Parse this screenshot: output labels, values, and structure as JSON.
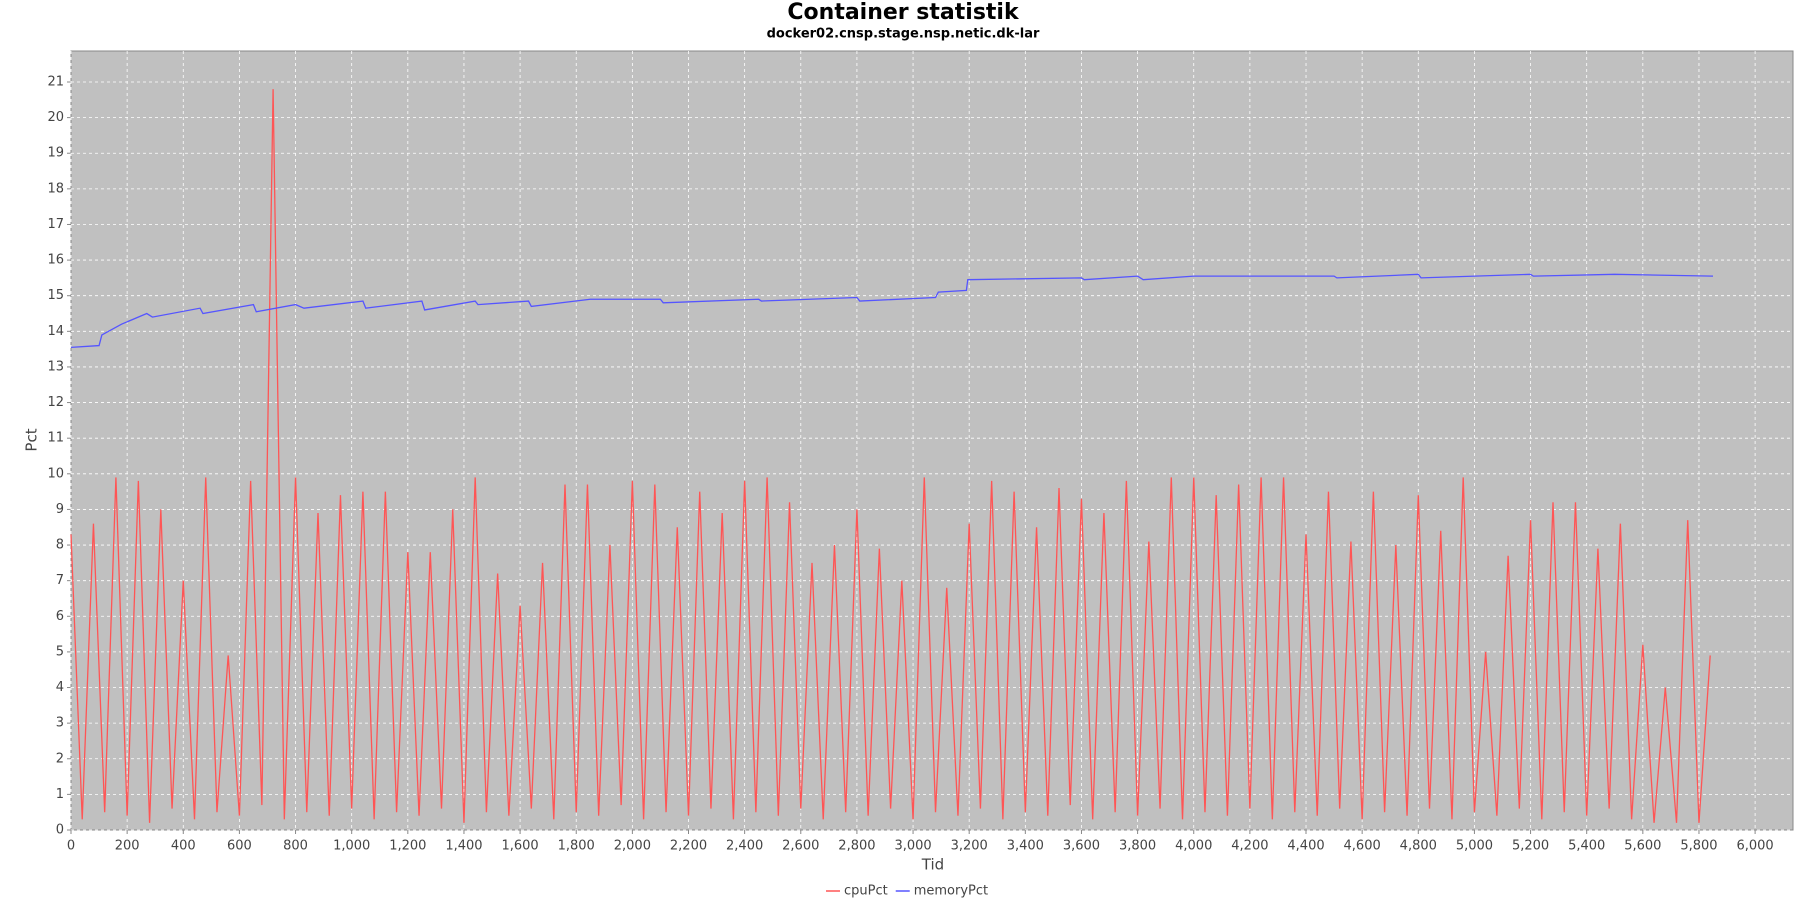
{
  "chart_data": {
    "type": "line",
    "title": "Container statistik",
    "subtitle": "docker02.cnsp.stage.nsp.netic.dk-lar",
    "x_label": "Tid",
    "y_label": "Pct",
    "grid": true,
    "legend": "bottom",
    "background": "#c0c0c0",
    "xlim": [
      0,
      6135
    ],
    "ylim": [
      0,
      21.87
    ],
    "xticks": [
      0,
      200,
      400,
      600,
      800,
      {
        "value": 1000,
        "label": "1,000"
      },
      {
        "value": 1200,
        "label": "1,200"
      },
      {
        "value": 1400,
        "label": "1,400"
      },
      {
        "value": 1600,
        "label": "1,600"
      },
      {
        "value": 1800,
        "label": "1,800"
      },
      {
        "value": 2000,
        "label": "2,000"
      },
      {
        "value": 2200,
        "label": "2,200"
      },
      {
        "value": 2400,
        "label": "2,400"
      },
      {
        "value": 2600,
        "label": "2,600"
      },
      {
        "value": 2800,
        "label": "2,800"
      },
      {
        "value": 3000,
        "label": "3,000"
      },
      {
        "value": 3200,
        "label": "3,200"
      },
      {
        "value": 3400,
        "label": "3,400"
      },
      {
        "value": 3600,
        "label": "3,600"
      },
      {
        "value": 3800,
        "label": "3,800"
      },
      {
        "value": 4000,
        "label": "4,000"
      },
      {
        "value": 4200,
        "label": "4,200"
      },
      {
        "value": 4400,
        "label": "4,400"
      },
      {
        "value": 4600,
        "label": "4,600"
      },
      {
        "value": 4800,
        "label": "4,800"
      },
      {
        "value": 5000,
        "label": "5,000"
      },
      {
        "value": 5200,
        "label": "5,200"
      },
      {
        "value": 5400,
        "label": "5,400"
      },
      {
        "value": 5600,
        "label": "5,600"
      },
      {
        "value": 5800,
        "label": "5,800"
      },
      {
        "value": 6000,
        "label": "6,000"
      }
    ],
    "yticks": [
      0,
      1,
      2,
      3,
      4,
      5,
      6,
      7,
      8,
      9,
      10,
      11,
      12,
      13,
      14,
      15,
      16,
      17,
      18,
      19,
      20,
      21
    ],
    "series": [
      {
        "name": "cpuPct",
        "color": "#ff5555",
        "x": [
          0,
          40,
          80,
          120,
          160,
          200,
          240,
          280,
          320,
          360,
          400,
          440,
          480,
          520,
          560,
          600,
          640,
          680,
          720,
          760,
          800,
          840,
          880,
          920,
          960,
          1000,
          1040,
          1080,
          1120,
          1160,
          1200,
          1240,
          1280,
          1320,
          1360,
          1400,
          1440,
          1480,
          1520,
          1560,
          1600,
          1640,
          1680,
          1720,
          1760,
          1800,
          1840,
          1880,
          1920,
          1960,
          2000,
          2040,
          2080,
          2120,
          2160,
          2200,
          2240,
          2280,
          2320,
          2360,
          2400,
          2440,
          2480,
          2520,
          2560,
          2600,
          2640,
          2680,
          2720,
          2760,
          2800,
          2840,
          2880,
          2920,
          2960,
          3000,
          3040,
          3080,
          3120,
          3160,
          3200,
          3240,
          3280,
          3320,
          3360,
          3400,
          3440,
          3480,
          3520,
          3560,
          3600,
          3640,
          3680,
          3720,
          3760,
          3800,
          3840,
          3880,
          3920,
          3960,
          4000,
          4040,
          4080,
          4120,
          4160,
          4200,
          4240,
          4280,
          4320,
          4360,
          4400,
          4440,
          4480,
          4520,
          4560,
          4600,
          4640,
          4680,
          4720,
          4760,
          4800,
          4840,
          4880,
          4920,
          4960,
          5000,
          5040,
          5080,
          5120,
          5160,
          5200,
          5240,
          5280,
          5320,
          5360,
          5400,
          5440,
          5480,
          5520,
          5560,
          5600,
          5640,
          5680,
          5720,
          5760,
          5800,
          5840
        ],
        "values": [
          8.3,
          0.3,
          8.6,
          0.5,
          9.9,
          0.4,
          9.8,
          0.2,
          9.0,
          0.6,
          7.0,
          0.3,
          9.9,
          0.5,
          4.9,
          0.4,
          9.8,
          0.7,
          20.8,
          0.3,
          9.9,
          0.5,
          8.9,
          0.4,
          9.4,
          0.6,
          9.5,
          0.3,
          9.5,
          0.5,
          7.8,
          0.4,
          7.8,
          0.6,
          9.0,
          0.2,
          9.9,
          0.5,
          7.2,
          0.4,
          6.3,
          0.6,
          7.5,
          0.3,
          9.7,
          0.5,
          9.7,
          0.4,
          8.0,
          0.7,
          9.8,
          0.3,
          9.7,
          0.5,
          8.5,
          0.4,
          9.5,
          0.6,
          8.9,
          0.3,
          9.8,
          0.5,
          9.9,
          0.4,
          9.2,
          0.6,
          7.5,
          0.3,
          8.0,
          0.5,
          9.0,
          0.4,
          7.9,
          0.6,
          7.0,
          0.3,
          9.9,
          0.5,
          6.8,
          0.4,
          8.6,
          0.6,
          9.8,
          0.3,
          9.5,
          0.5,
          8.5,
          0.4,
          9.6,
          0.7,
          9.3,
          0.3,
          8.9,
          0.5,
          9.8,
          0.4,
          8.1,
          0.6,
          9.9,
          0.3,
          9.9,
          0.5,
          9.4,
          0.4,
          9.7,
          0.6,
          9.9,
          0.3,
          9.9,
          0.5,
          8.3,
          0.4,
          9.5,
          0.6,
          8.1,
          0.3,
          9.5,
          0.5,
          8.0,
          0.4,
          9.4,
          0.6,
          8.4,
          0.3,
          9.9,
          0.5,
          5.0,
          0.4,
          7.7,
          0.6,
          8.7,
          0.3,
          9.2,
          0.5,
          9.2,
          0.4,
          7.9,
          0.6,
          8.6,
          0.3,
          5.2,
          0.2,
          4.0,
          0.2,
          8.7,
          0.2,
          4.9
        ]
      },
      {
        "name": "memoryPct",
        "color": "#5555ff",
        "x": [
          0,
          100,
          110,
          180,
          270,
          290,
          460,
          470,
          650,
          660,
          800,
          830,
          1040,
          1050,
          1250,
          1260,
          1440,
          1450,
          1630,
          1640,
          1850,
          2100,
          2110,
          2450,
          2460,
          2800,
          2810,
          3080,
          3090,
          3190,
          3195,
          3600,
          3610,
          3800,
          3820,
          4000,
          4500,
          4510,
          4800,
          4810,
          5200,
          5210,
          5500,
          5850
        ],
        "values": [
          13.55,
          13.6,
          13.9,
          14.2,
          14.5,
          14.4,
          14.65,
          14.5,
          14.75,
          14.55,
          14.75,
          14.65,
          14.85,
          14.65,
          14.85,
          14.6,
          14.85,
          14.75,
          14.85,
          14.7,
          14.9,
          14.9,
          14.8,
          14.9,
          14.85,
          14.95,
          14.85,
          14.95,
          15.1,
          15.15,
          15.45,
          15.5,
          15.45,
          15.55,
          15.45,
          15.55,
          15.55,
          15.5,
          15.6,
          15.5,
          15.6,
          15.55,
          15.6,
          15.55
        ]
      }
    ]
  }
}
